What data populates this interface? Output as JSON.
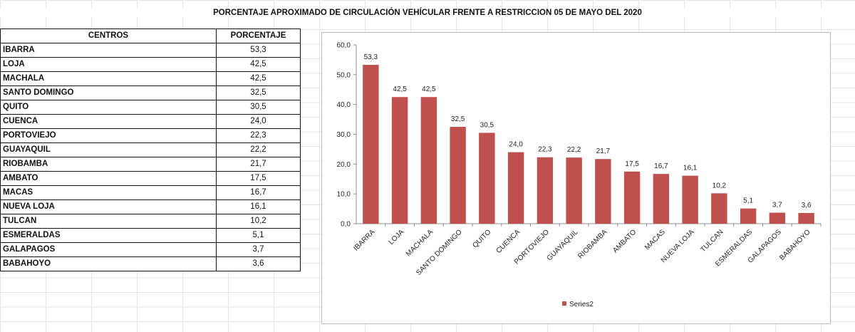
{
  "title": "PORCENTAJE APROXIMADO DE CIRCULACIÓN VEHÍCULAR FRENTE A RESTRICCION 05 DE MAYO DEL 2020",
  "table": {
    "headers": [
      "CENTROS",
      "PORCENTAJE"
    ],
    "rows": [
      [
        "IBARRA",
        "53,3"
      ],
      [
        "LOJA",
        "42,5"
      ],
      [
        "MACHALA",
        "42,5"
      ],
      [
        "SANTO DOMINGO",
        "32,5"
      ],
      [
        "QUITO",
        "30,5"
      ],
      [
        "CUENCA",
        "24,0"
      ],
      [
        "PORTOVIEJO",
        "22,3"
      ],
      [
        "GUAYAQUIL",
        "22,2"
      ],
      [
        "RIOBAMBA",
        "21,7"
      ],
      [
        "AMBATO",
        "17,5"
      ],
      [
        "MACAS",
        "16,7"
      ],
      [
        "NUEVA LOJA",
        "16,1"
      ],
      [
        "TULCAN",
        "10,2"
      ],
      [
        "ESMERALDAS",
        "5,1"
      ],
      [
        "GALAPAGOS",
        "3,7"
      ],
      [
        "BABAHOYO",
        "3,6"
      ]
    ]
  },
  "chart_data": {
    "type": "bar",
    "title": "",
    "xlabel": "",
    "ylabel": "",
    "categories": [
      "IBARRA",
      "LOJA",
      "MACHALA",
      "SANTO DOMINGO",
      "QUITO",
      "CUENCA",
      "PORTOVIEJO",
      "GUAYAQUIL",
      "RIOBAMBA",
      "AMBATO",
      "MACAS",
      "NUEVA LOJA",
      "TULCAN",
      "ESMERALDAS",
      "GALAPAGOS",
      "BABAHOYO"
    ],
    "series": [
      {
        "name": "Series2",
        "values": [
          53.3,
          42.5,
          42.5,
          32.5,
          30.5,
          24.0,
          22.3,
          22.2,
          21.7,
          17.5,
          16.7,
          16.1,
          10.2,
          5.1,
          3.7,
          3.6
        ]
      }
    ],
    "data_labels": [
      "53,3",
      "42,5",
      "42,5",
      "32,5",
      "30,5",
      "24,0",
      "22,3",
      "22,2",
      "21,7",
      "17,5",
      "16,7",
      "16,1",
      "10,2",
      "5,1",
      "3,7",
      "3,6"
    ],
    "y_ticks": [
      "0,0",
      "10,0",
      "20,0",
      "30,0",
      "40,0",
      "50,0",
      "60,0"
    ],
    "ylim": [
      0,
      60
    ],
    "grid": false,
    "legend": "bottom",
    "color": "#c0504d"
  }
}
